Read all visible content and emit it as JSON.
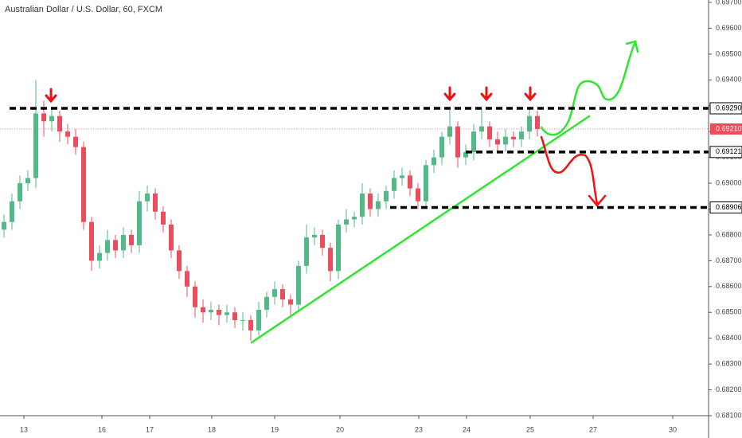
{
  "chart_data": {
    "type": "candlestick",
    "title": "Australian Dollar / U.S. Dollar, 60, FXCM",
    "up_color": "#53b987",
    "down_color": "#eb4d5c",
    "x": [
      0.5,
      1.5,
      2.5,
      3.5,
      4.5,
      5.5,
      6.5,
      7.5,
      8.5,
      9.5,
      10.5,
      11.5,
      12.5,
      13.5,
      14.5,
      15.5,
      16.5,
      17.5,
      18.5,
      19.5,
      20.5,
      21.5,
      22.5,
      23.5,
      24.5,
      25.5,
      26.5,
      27.5,
      28.5,
      29.5,
      30.5,
      31.5,
      32.5,
      33.5,
      34.5,
      35.5,
      36.5,
      37.5,
      38.5,
      39.5,
      40.5,
      41.5,
      42.5,
      43.5,
      44.5,
      45.5,
      46.5,
      47.5,
      48.5,
      49.5,
      50.5,
      51.5,
      52.5,
      53.5,
      54.5,
      55.5,
      56.5,
      57.5,
      58.5,
      59.5,
      60.5,
      61.5,
      62.5,
      63.5,
      64.5,
      65.5,
      66.5,
      67.5
    ],
    "open": [
      0.6882,
      0.6885,
      0.6893,
      0.69,
      0.6902,
      0.6927,
      0.6924,
      0.6926,
      0.692,
      0.6918,
      0.6914,
      0.6885,
      0.687,
      0.6873,
      0.6878,
      0.6874,
      0.688,
      0.6876,
      0.6893,
      0.6896,
      0.6889,
      0.6884,
      0.6874,
      0.6866,
      0.686,
      0.6852,
      0.685,
      0.6851,
      0.6849,
      0.685,
      0.6847,
      0.6847,
      0.6843,
      0.6851,
      0.6856,
      0.6859,
      0.6855,
      0.6853,
      0.6868,
      0.6879,
      0.688,
      0.6875,
      0.6866,
      0.6884,
      0.6886,
      0.6887,
      0.6896,
      0.689,
      0.6893,
      0.6897,
      0.6902,
      0.6903,
      0.6898,
      0.6893,
      0.6907,
      0.691,
      0.6918,
      0.6922,
      0.691,
      0.6912,
      0.692,
      0.6922,
      0.6917,
      0.6915,
      0.6918,
      0.6917,
      0.692,
      0.6926
    ],
    "high": [
      0.6888,
      0.6896,
      0.6903,
      0.6905,
      0.694,
      0.6932,
      0.6929,
      0.6928,
      0.6923,
      0.6921,
      0.6916,
      0.6887,
      0.6876,
      0.6882,
      0.688,
      0.6883,
      0.6882,
      0.6897,
      0.6899,
      0.6898,
      0.6891,
      0.6886,
      0.6876,
      0.6868,
      0.6862,
      0.6855,
      0.6854,
      0.6853,
      0.6853,
      0.6852,
      0.685,
      0.6849,
      0.6854,
      0.6858,
      0.6862,
      0.6861,
      0.6857,
      0.687,
      0.6884,
      0.6883,
      0.6882,
      0.6877,
      0.6886,
      0.689,
      0.6889,
      0.69,
      0.6898,
      0.6896,
      0.6899,
      0.6905,
      0.6906,
      0.6905,
      0.69,
      0.6909,
      0.6913,
      0.692,
      0.6929,
      0.6924,
      0.6915,
      0.6923,
      0.6929,
      0.6924,
      0.692,
      0.6921,
      0.692,
      0.6922,
      0.6929,
      0.6928
    ],
    "low": [
      0.6879,
      0.6882,
      0.689,
      0.6897,
      0.6898,
      0.6918,
      0.692,
      0.6916,
      0.6915,
      0.6911,
      0.6882,
      0.6866,
      0.6867,
      0.687,
      0.6871,
      0.6871,
      0.6873,
      0.6873,
      0.6889,
      0.6886,
      0.6881,
      0.6871,
      0.6863,
      0.6856,
      0.6848,
      0.6846,
      0.6847,
      0.6845,
      0.6846,
      0.6844,
      0.6843,
      0.6839,
      0.6841,
      0.6848,
      0.6853,
      0.6852,
      0.6849,
      0.685,
      0.6865,
      0.6876,
      0.6872,
      0.6862,
      0.6863,
      0.6881,
      0.6883,
      0.6884,
      0.6887,
      0.6887,
      0.689,
      0.6894,
      0.6899,
      0.6895,
      0.689,
      0.689,
      0.6904,
      0.6907,
      0.6915,
      0.6906,
      0.6907,
      0.6909,
      0.6917,
      0.6914,
      0.6912,
      0.6912,
      0.6914,
      0.6914,
      0.6917,
      0.6918
    ],
    "close": [
      0.6885,
      0.6893,
      0.69,
      0.6902,
      0.6927,
      0.6924,
      0.6926,
      0.692,
      0.6918,
      0.6914,
      0.6885,
      0.687,
      0.6873,
      0.6878,
      0.6874,
      0.688,
      0.6876,
      0.6893,
      0.6896,
      0.6889,
      0.6884,
      0.6874,
      0.6866,
      0.686,
      0.6852,
      0.685,
      0.6851,
      0.6849,
      0.685,
      0.6847,
      0.6847,
      0.6843,
      0.6851,
      0.6856,
      0.6859,
      0.6855,
      0.6853,
      0.6868,
      0.6879,
      0.688,
      0.6875,
      0.6866,
      0.6884,
      0.6886,
      0.6887,
      0.6896,
      0.689,
      0.6893,
      0.6897,
      0.6902,
      0.6903,
      0.6898,
      0.6893,
      0.6907,
      0.691,
      0.6918,
      0.6922,
      0.691,
      0.6912,
      0.692,
      0.6922,
      0.6917,
      0.6915,
      0.6918,
      0.6917,
      0.692,
      0.6926,
      0.6921
    ],
    "xlim": [
      0,
      89
    ],
    "xticks": [
      {
        "value": 3.0,
        "label": "13"
      },
      {
        "value": 12.8,
        "label": "16"
      },
      {
        "value": 18.8,
        "label": "17"
      },
      {
        "value": 26.6,
        "label": "18"
      },
      {
        "value": 34.5,
        "label": "19"
      },
      {
        "value": 42.7,
        "label": "20"
      },
      {
        "value": 52.6,
        "label": "23"
      },
      {
        "value": 58.6,
        "label": "24"
      },
      {
        "value": 66.6,
        "label": "25"
      },
      {
        "value": 74.5,
        "label": "27"
      },
      {
        "value": 84.5,
        "label": "30"
      }
    ],
    "ylim": [
      0.681,
      0.697
    ],
    "yticks": [
      {
        "value": 0.681,
        "label": "0.68100"
      },
      {
        "value": 0.682,
        "label": "0.68200"
      },
      {
        "value": 0.683,
        "label": "0.68300"
      },
      {
        "value": 0.684,
        "label": "0.68400"
      },
      {
        "value": 0.685,
        "label": "0.68500"
      },
      {
        "value": 0.686,
        "label": "0.68600"
      },
      {
        "value": 0.687,
        "label": "0.68700"
      },
      {
        "value": 0.688,
        "label": "0.68800"
      },
      {
        "value": 0.689,
        "label": "0.68900"
      },
      {
        "value": 0.69,
        "label": "0.69000"
      },
      {
        "value": 0.691,
        "label": "0.69100"
      },
      {
        "value": 0.692,
        "label": "0.69200"
      },
      {
        "value": 0.693,
        "label": "0.69300"
      },
      {
        "value": 0.694,
        "label": "0.69400"
      },
      {
        "value": 0.695,
        "label": "0.69500"
      },
      {
        "value": 0.696,
        "label": "0.69600"
      },
      {
        "value": 0.697,
        "label": "0.69700"
      }
    ],
    "grid": false,
    "levels": [
      {
        "value": 0.6929,
        "label": "0.69290"
      },
      {
        "value": 0.69121,
        "label": "0.69121"
      },
      {
        "value": 0.68906,
        "label": "0.68906"
      }
    ],
    "last_price": {
      "value": 0.6921,
      "label": "0.69210"
    }
  }
}
